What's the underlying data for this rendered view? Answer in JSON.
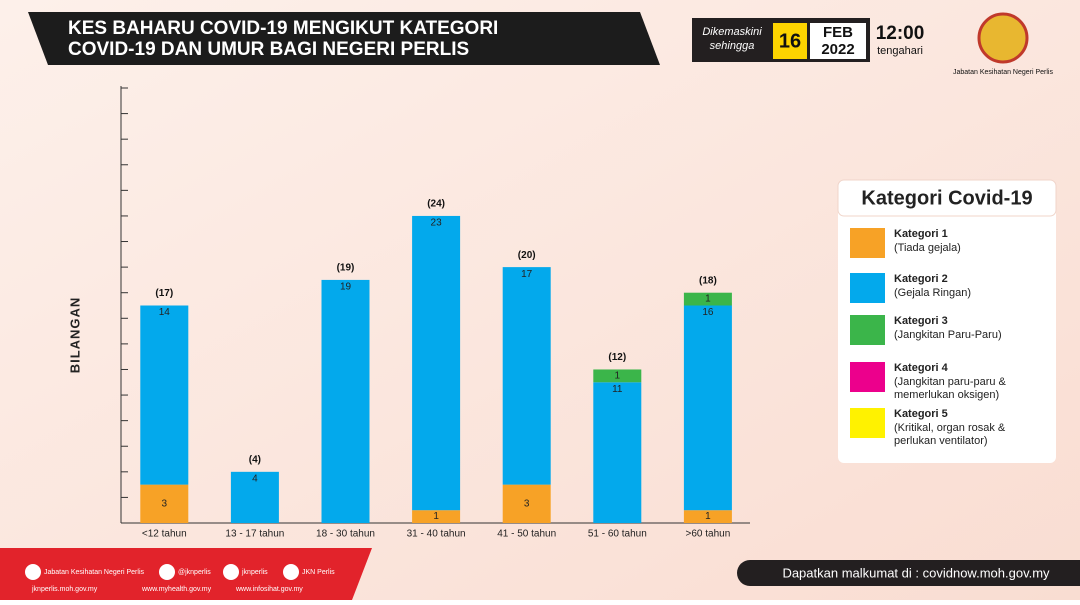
{
  "header": {
    "title_lines": [
      "KES BAHARU COVID-19 MENGIKUT KATEGORI",
      "COVID-19 DAN UMUR BAGI NEGERI PERLIS"
    ],
    "updated_lines": [
      "Dikemaskini",
      "sehingga"
    ],
    "day": "16",
    "month": "FEB",
    "year": "2022",
    "time": "12:00",
    "time_note": "tengahari",
    "agency": "Jabatan Kesihatan Negeri Perlis"
  },
  "chart_data": {
    "type": "stacked_bar",
    "y_axis_label": "BILANGAN",
    "categories": [
      "<12 tahun",
      "13 - 17 tahun",
      "18 - 30 tahun",
      "31 - 40 tahun",
      "41 - 50 tahun",
      "51 - 60 tahun",
      ">60 tahun"
    ],
    "ylim": [
      0,
      34
    ],
    "yticks": [
      0,
      2,
      4,
      6,
      8,
      10,
      12,
      14,
      16,
      18,
      20,
      22,
      24,
      26,
      28,
      30,
      32,
      34
    ],
    "legend_title": "Kategori Covid-19",
    "series": [
      {
        "name": "Kategori 1",
        "description": [
          "(Tiada gejala)"
        ],
        "color": "#f7a226",
        "values": [
          3,
          0,
          0,
          1,
          3,
          0,
          1
        ]
      },
      {
        "name": "Kategori 2",
        "description": [
          "(Gejala Ringan)"
        ],
        "color": "#03a9ec",
        "values": [
          14,
          4,
          19,
          23,
          17,
          11,
          16
        ]
      },
      {
        "name": "Kategori 3",
        "description": [
          "(Jangkitan Paru-Paru)"
        ],
        "color": "#3bb54a",
        "values": [
          0,
          0,
          0,
          0,
          0,
          1,
          1
        ]
      },
      {
        "name": "Kategori 4",
        "description": [
          "(Jangkitan paru-paru &",
          "memerlukan oksigen)"
        ],
        "color": "#ec008c",
        "values": [
          0,
          0,
          0,
          0,
          0,
          0,
          0
        ]
      },
      {
        "name": "Kategori 5",
        "description": [
          "(Kritikal, organ rosak &",
          "perlukan ventilator)"
        ],
        "color": "#fff200",
        "values": [
          0,
          0,
          0,
          0,
          0,
          0,
          0
        ]
      }
    ],
    "totals": [
      17,
      4,
      19,
      24,
      20,
      12,
      18
    ],
    "totals_value_labels": [
      "(17)",
      "(4)",
      "(19)",
      "(24)",
      "(20)",
      "(12)",
      "(18)"
    ]
  },
  "footer": {
    "social": [
      "Jabatan Kesihatan Negeri Perlis",
      "@jknperlis",
      "jknperlis",
      "JKN Perlis"
    ],
    "websites": [
      "jknperlis.moh.gov.my",
      "www.myhealth.gov.my",
      "www.infosihat.gov.my"
    ],
    "info": "Dapatkan malkumat di : covidnow.moh.gov.my"
  }
}
